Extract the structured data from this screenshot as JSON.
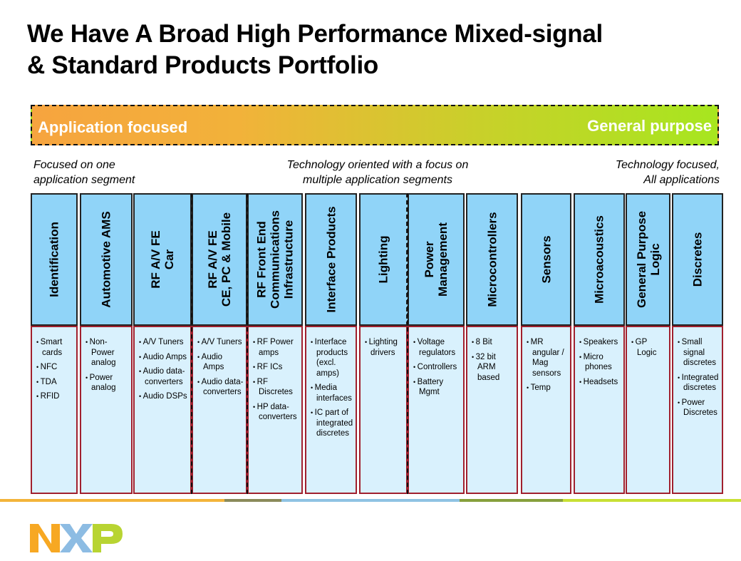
{
  "title": {
    "line1": "We Have A Broad High Performance Mixed-signal",
    "line2": "& Standard Products Portfolio"
  },
  "banner": {
    "left": "Application focused",
    "right": "General purpose"
  },
  "subtitles": {
    "left": [
      "Focused on one",
      "application segment"
    ],
    "center": [
      "Technology oriented with a focus on",
      "multiple application segments"
    ],
    "right": [
      "Technology focused,",
      "All applications"
    ]
  },
  "columns": [
    {
      "title": "Identification",
      "items": [
        "Smart cards",
        "NFC",
        "TDA",
        "RFID"
      ]
    },
    {
      "title": "Automotive AMS",
      "items": [
        "Non-Power analog",
        "Power analog"
      ]
    },
    {
      "title": "RF A/V FE\nCar",
      "items": [
        "A/V Tuners",
        "Audio Amps",
        "Audio data-converters",
        "Audio DSPs"
      ]
    },
    {
      "title": "RF A/V FE\nCE, PC & Mobile",
      "items": [
        "A/V Tuners",
        "Audio Amps",
        "Audio data-converters"
      ]
    },
    {
      "title": "RF Front End\nCommunications\nInfrastructure",
      "items": [
        "RF Power amps",
        "RF ICs",
        "RF Discretes",
        "HP data-converters"
      ]
    },
    {
      "title": "Interface Products",
      "items": [
        "Interface products (excl. amps)",
        "Media interfaces",
        "IC part of integrated discretes"
      ]
    },
    {
      "title": "Lighting",
      "items": [
        "Lighting drivers"
      ]
    },
    {
      "title": "Power\nManagement",
      "items": [
        "Voltage regulators",
        "Controllers",
        "Battery Mgmt"
      ]
    },
    {
      "title": "Microcontrollers",
      "items": [
        "8 Bit",
        "32 bit ARM based"
      ]
    },
    {
      "title": "Sensors",
      "items": [
        "MR angular / Mag sensors",
        "Temp"
      ]
    },
    {
      "title": "Microacoustics",
      "items": [
        "Speakers",
        "Micro phones",
        "Headsets"
      ]
    },
    {
      "title": "General Purpose\nLogic",
      "items": [
        "GP Logic"
      ]
    },
    {
      "title": "Discretes",
      "items": [
        "Small signal discretes",
        "Integrated discretes",
        "Power Discretes"
      ]
    }
  ],
  "logo": {
    "text": "NXP"
  },
  "colors": {
    "header_fill": "#90d4f8",
    "body_fill": "#d9f1fd",
    "body_border": "#a0202e"
  }
}
